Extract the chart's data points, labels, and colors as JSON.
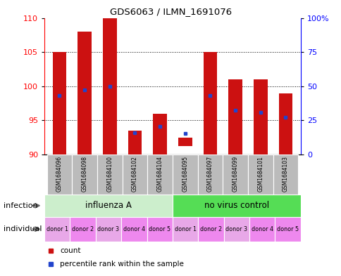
{
  "title": "GDS6063 / ILMN_1691076",
  "samples": [
    "GSM1684096",
    "GSM1684098",
    "GSM1684100",
    "GSM1684102",
    "GSM1684104",
    "GSM1684095",
    "GSM1684097",
    "GSM1684099",
    "GSM1684101",
    "GSM1684103"
  ],
  "bar_bottoms": [
    90,
    90,
    90,
    90,
    90,
    91.2,
    90,
    90,
    90,
    90
  ],
  "bar_tops": [
    105,
    108,
    110,
    93.5,
    96,
    92.5,
    105,
    101,
    101,
    99
  ],
  "blue_vals": [
    98.6,
    99.5,
    100.0,
    93.2,
    94.1,
    93.1,
    98.6,
    96.5,
    96.2,
    95.5
  ],
  "ylim": [
    90,
    110
  ],
  "yticks_left": [
    90,
    95,
    100,
    105,
    110
  ],
  "yticks_right_vals": [
    90,
    95,
    100,
    105,
    110
  ],
  "yticks_right_labels": [
    "0",
    "25",
    "50",
    "75",
    "100%"
  ],
  "bar_color": "#cc1111",
  "blue_color": "#2244cc",
  "infection_groups": [
    {
      "label": "influenza A",
      "start": 0,
      "end": 5,
      "color": "#cceecc"
    },
    {
      "label": "no virus control",
      "start": 5,
      "end": 10,
      "color": "#55dd55"
    }
  ],
  "individual_labels": [
    "donor 1",
    "donor 2",
    "donor 3",
    "donor 4",
    "donor 5",
    "donor 1",
    "donor 2",
    "donor 3",
    "donor 4",
    "donor 5"
  ],
  "individual_colors": [
    "#e8a8e8",
    "#ee88ee",
    "#e8a8e8",
    "#ee88ee",
    "#ee88ee",
    "#e8a8e8",
    "#ee88ee",
    "#e8a8e8",
    "#ee88ee",
    "#ee88ee"
  ],
  "bg_color": "#ffffff",
  "tick_bg": "#bbbbbb",
  "bar_width": 0.55,
  "legend_count_label": "count",
  "legend_pct_label": "percentile rank within the sample"
}
